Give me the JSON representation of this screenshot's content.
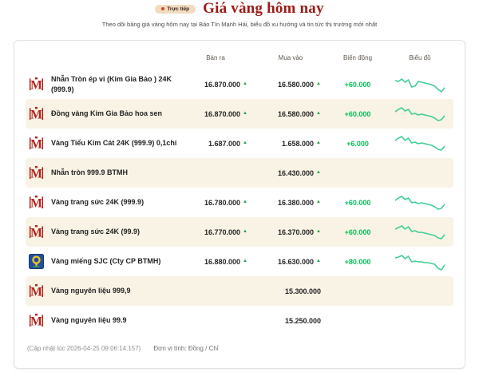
{
  "header": {
    "live_badge": "Trực tiếp",
    "title": "Giá vàng hôm nay",
    "subtitle": "Theo dõi bảng giá vàng hôm nay tại Bảo Tín Mạnh Hải, biểu đồ xu hướng và tin tức thị trường mới nhất"
  },
  "table": {
    "columns": {
      "sell": "Bán ra",
      "buy": "Mua vào",
      "change": "Biến động",
      "chart": "Biểu đồ"
    },
    "rows": [
      {
        "icon": "btmh-logo",
        "name": "Nhẫn Tròn ép vỉ (Kim Gia Bảo ) 24K (999.9)",
        "sell": "16.870.000",
        "sell_up": true,
        "buy": "16.580.000",
        "buy_up": true,
        "change": "+60.000",
        "spark": [
          8,
          9,
          6,
          10,
          7,
          16,
          15,
          9,
          10,
          11,
          12,
          13,
          15,
          19,
          22,
          17
        ]
      },
      {
        "icon": "btmh-logo",
        "name": "Đồng vàng Kim Gia Bảo hoa sen",
        "sell": "16.870.000",
        "sell_up": true,
        "buy": "16.580.000",
        "buy_up": true,
        "change": "+60.000",
        "spark": [
          10,
          7,
          5,
          9,
          7,
          13,
          12,
          14,
          13,
          14,
          15,
          16,
          18,
          21,
          20,
          15
        ]
      },
      {
        "icon": "btmh-logo",
        "name": "Vàng Tiểu Kim Cát 24K (999.9) 0,1chi",
        "sell": "1.687.000",
        "sell_up": true,
        "buy": "1.658.000",
        "buy_up": true,
        "change": "+6.000",
        "spark": [
          9,
          6,
          4,
          9,
          6,
          12,
          11,
          13,
          12,
          13,
          14,
          15,
          17,
          20,
          21,
          16
        ]
      },
      {
        "icon": "btmh-logo",
        "name": "Nhẫn tròn 999.9 BTMH",
        "sell": "",
        "sell_up": false,
        "buy": "16.430.000",
        "buy_up": true,
        "change": "",
        "spark": null
      },
      {
        "icon": "btmh-logo",
        "name": "Vàng trang sức 24K (999.9)",
        "sell": "16.780.000",
        "sell_up": true,
        "buy": "16.380.000",
        "buy_up": true,
        "change": "+60.000",
        "spark": [
          10,
          7,
          5,
          9,
          7,
          13,
          12,
          14,
          13,
          14,
          15,
          16,
          18,
          21,
          20,
          15
        ]
      },
      {
        "icon": "btmh-logo",
        "name": "Vàng trang sức 24K (99.9)",
        "sell": "16.770.000",
        "sell_up": true,
        "buy": "16.370.000",
        "buy_up": true,
        "change": "+60.000",
        "spark": [
          9,
          7,
          5,
          9,
          6,
          12,
          11,
          13,
          13,
          14,
          15,
          16,
          17,
          20,
          21,
          16
        ]
      },
      {
        "icon": "sjc-logo",
        "name": "Vàng miếng SJC (Cty CP BTMH)",
        "sell": "16.880.000",
        "sell_up": true,
        "buy": "16.630.000",
        "buy_up": true,
        "change": "+80.000",
        "spark": [
          8,
          7,
          5,
          9,
          6,
          13,
          12,
          13,
          13,
          14,
          14,
          15,
          16,
          21,
          23,
          17
        ]
      },
      {
        "icon": "btmh-logo",
        "name": "Vàng nguyên liệu 999,9",
        "sell": "",
        "sell_up": false,
        "buy": "15.300.000",
        "buy_up": false,
        "change": "",
        "spark": null
      },
      {
        "icon": "btmh-logo",
        "name": "Vàng nguyên liệu 99.9",
        "sell": "",
        "sell_up": false,
        "buy": "15.250.000",
        "buy_up": false,
        "change": "",
        "spark": null
      }
    ]
  },
  "footer": {
    "updated": "(Cập nhật lúc 2026-04-25 09:06:14.157)",
    "unit": "Đơn vị tính: Đồng / Chỉ"
  },
  "colors": {
    "title_red": "#9b1b16",
    "badge_bg": "#f2dcc0",
    "badge_dot": "#d9432e",
    "alt_row_bg": "#f9f3e6",
    "change_green": "#07c257",
    "arrow_green": "#1fa24a",
    "sparkline_green": "#3fcf96",
    "btmh_logo_red": "#b3231c",
    "sjc_logo_blue": "#1f4fa0",
    "sjc_logo_yellow": "#f5c51d"
  }
}
